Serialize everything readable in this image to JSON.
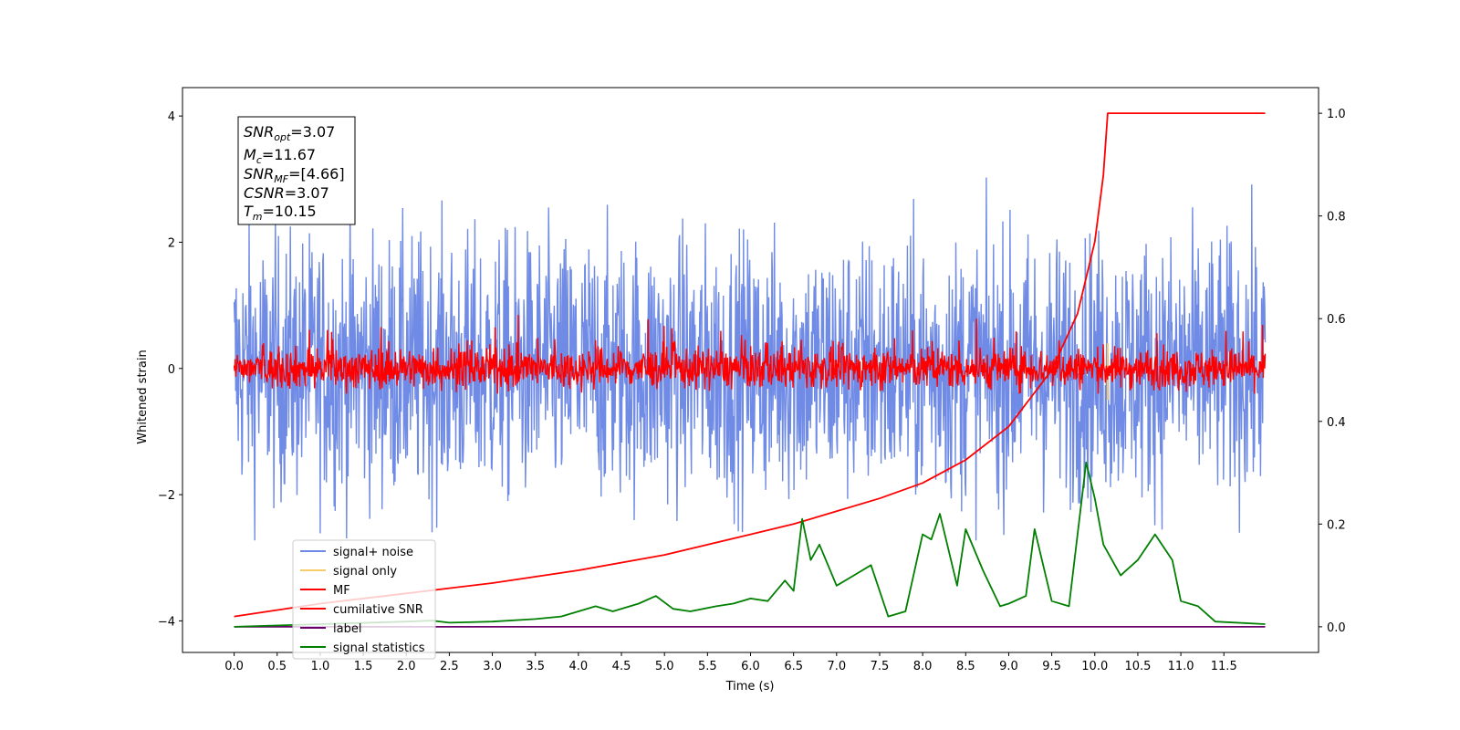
{
  "chart_data": {
    "type": "line",
    "xlabel": "Time (s)",
    "ylabel": "Whitened strain",
    "xlim": [
      -0.6,
      12.6
    ],
    "ylim": [
      -4.5,
      4.45
    ],
    "y2lim": [
      -0.05,
      1.05
    ],
    "x_ticks": [
      "0.0",
      "0.5",
      "1.0",
      "1.5",
      "2.0",
      "2.5",
      "3.0",
      "3.5",
      "4.0",
      "4.5",
      "5.0",
      "5.5",
      "6.0",
      "6.5",
      "7.0",
      "7.5",
      "8.0",
      "8.5",
      "9.0",
      "9.5",
      "10.0",
      "10.5",
      "11.0",
      "11.5"
    ],
    "y_ticks": [
      "4",
      "2",
      "0",
      "−2",
      "−4"
    ],
    "y2_ticks": [
      "1.0",
      "0.8",
      "0.6",
      "0.4",
      "0.2",
      "0.0"
    ],
    "annotation": {
      "snr_opt": {
        "sym": "SNR",
        "sub": "opt",
        "val": "=3.07"
      },
      "mc": {
        "sym": "M",
        "sub": "c",
        "val": "=11.67"
      },
      "snr_mf": {
        "sym": "SNR",
        "sub": "MF",
        "val": "=[4.66]"
      },
      "csnr": {
        "sym": "CSNR",
        "sub": "",
        "val": "=3.07"
      },
      "tm": {
        "sym": "T",
        "sub": "m",
        "val": "=10.15"
      }
    },
    "merger_time": 10.15,
    "series": [
      {
        "name": "signal+ noise",
        "color": "#6f8be6",
        "axis": "left",
        "y_range": [
          -3.3,
          4.0
        ]
      },
      {
        "name": "signal only",
        "color": "#f7ca6a",
        "axis": "left"
      },
      {
        "name": "MF",
        "color": "#ff0000",
        "axis": "left",
        "y_range": [
          -0.4,
          0.85
        ]
      },
      {
        "name": "cumilative SNR",
        "color": "#ff0000",
        "axis": "right",
        "x": [
          0.0,
          1.0,
          2.0,
          3.0,
          4.0,
          5.0,
          6.0,
          6.5,
          7.0,
          7.5,
          8.0,
          8.5,
          9.0,
          9.5,
          9.8,
          10.0,
          10.1,
          10.15,
          11.5
        ],
        "y": [
          0.02,
          0.045,
          0.065,
          0.085,
          0.11,
          0.14,
          0.18,
          0.2,
          0.225,
          0.25,
          0.28,
          0.325,
          0.39,
          0.5,
          0.61,
          0.75,
          0.88,
          1.0,
          1.0
        ]
      },
      {
        "name": "label",
        "color": "#6a006a",
        "axis": "right",
        "x": [
          0.0,
          11.5
        ],
        "y": [
          0.0,
          0.0
        ]
      },
      {
        "name": "signal statistics",
        "color": "#007f00",
        "axis": "right",
        "x": [
          0.0,
          1.0,
          2.0,
          2.3,
          2.5,
          3.0,
          3.5,
          3.8,
          4.0,
          4.2,
          4.4,
          4.7,
          4.9,
          5.1,
          5.3,
          5.6,
          5.8,
          6.0,
          6.2,
          6.4,
          6.5,
          6.6,
          6.7,
          6.8,
          7.0,
          7.2,
          7.4,
          7.6,
          7.8,
          8.0,
          8.1,
          8.2,
          8.4,
          8.5,
          8.7,
          8.9,
          9.0,
          9.2,
          9.3,
          9.5,
          9.7,
          9.9,
          10.0,
          10.1,
          10.3,
          10.5,
          10.7,
          10.9,
          11.0,
          11.2,
          11.4,
          11.5
        ],
        "y": [
          0.0,
          0.005,
          0.01,
          0.012,
          0.008,
          0.01,
          0.015,
          0.02,
          0.03,
          0.04,
          0.03,
          0.045,
          0.06,
          0.035,
          0.03,
          0.04,
          0.045,
          0.055,
          0.05,
          0.09,
          0.07,
          0.21,
          0.13,
          0.16,
          0.08,
          0.1,
          0.12,
          0.02,
          0.03,
          0.18,
          0.17,
          0.22,
          0.08,
          0.19,
          0.11,
          0.04,
          0.045,
          0.06,
          0.19,
          0.05,
          0.04,
          0.32,
          0.25,
          0.16,
          0.1,
          0.13,
          0.18,
          0.13,
          0.05,
          0.04,
          0.01,
          0.005
        ]
      }
    ]
  }
}
